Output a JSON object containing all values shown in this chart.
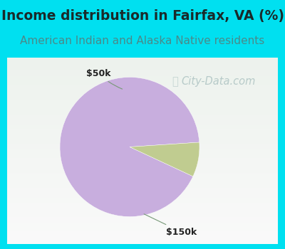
{
  "title": "Income distribution in Fairfax, VA (%)",
  "subtitle": "American Indian and Alaska Native residents",
  "title_fontsize": 13.5,
  "subtitle_fontsize": 11,
  "title_color": "#1a2a2a",
  "subtitle_color": "#4a8a8a",
  "slices": [
    92.0,
    8.0
  ],
  "slice_colors": [
    "#c8aede",
    "#c0cc90"
  ],
  "slice_labels": [
    "$150k",
    "$50k"
  ],
  "cyan_border": "#00e0f0",
  "chart_bg": "#e8f5ec",
  "watermark": "City-Data.com",
  "watermark_color": "#aac0c0",
  "watermark_fontsize": 10.5,
  "label_fontsize": 9,
  "label_color": "#222222"
}
